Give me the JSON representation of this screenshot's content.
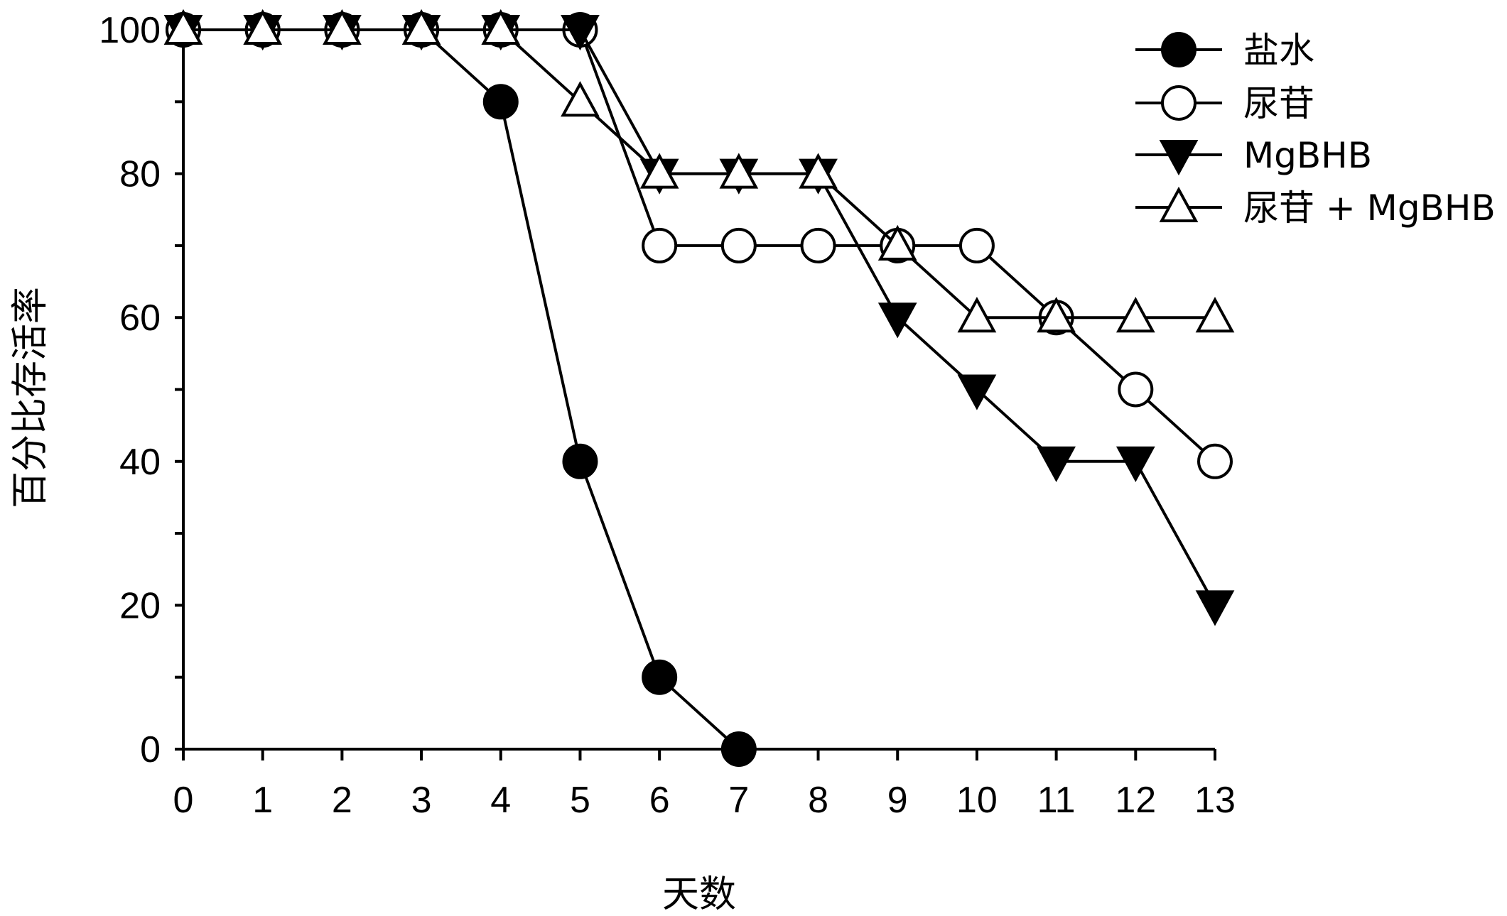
{
  "chart_data": {
    "type": "line",
    "title": "",
    "xlabel": "天数",
    "ylabel": "百分比存活率",
    "x": [
      0,
      1,
      2,
      3,
      4,
      5,
      6,
      7,
      8,
      9,
      10,
      11,
      12,
      13
    ],
    "xlim": [
      0,
      13
    ],
    "ylim": [
      0,
      100
    ],
    "yticks": [
      0,
      20,
      40,
      60,
      80,
      100
    ],
    "xtick_labels": [
      "0",
      "1",
      "2",
      "3",
      "4",
      "5",
      "6",
      "7",
      "8",
      "9",
      "10",
      "11",
      "12",
      "13"
    ],
    "ytick_labels": [
      "0",
      "20",
      "40",
      "60",
      "80",
      "100"
    ],
    "grid": false,
    "legend_position": "top-right",
    "series": [
      {
        "name": "盐水",
        "marker": "filled-circle",
        "x": [
          0,
          1,
          2,
          3,
          4,
          5,
          6,
          7
        ],
        "values": [
          100,
          100,
          100,
          100,
          90,
          40,
          10,
          0
        ]
      },
      {
        "name": "尿苷",
        "marker": "open-circle",
        "x": [
          0,
          1,
          2,
          3,
          4,
          5,
          6,
          7,
          8,
          9,
          10,
          11,
          12,
          13
        ],
        "values": [
          100,
          100,
          100,
          100,
          100,
          100,
          70,
          70,
          70,
          70,
          70,
          60,
          50,
          40
        ]
      },
      {
        "name": "MgBHB",
        "marker": "filled-triangle-down",
        "x": [
          0,
          1,
          2,
          3,
          4,
          5,
          6,
          7,
          8,
          9,
          10,
          11,
          12,
          13
        ],
        "values": [
          100,
          100,
          100,
          100,
          100,
          100,
          80,
          80,
          80,
          60,
          50,
          40,
          40,
          20
        ]
      },
      {
        "name": "尿苷 + MgBHB",
        "marker": "open-triangle-up",
        "x": [
          0,
          1,
          2,
          3,
          4,
          5,
          6,
          7,
          8,
          9,
          10,
          11,
          12,
          13
        ],
        "values": [
          100,
          100,
          100,
          100,
          100,
          90,
          80,
          80,
          80,
          70,
          60,
          60,
          60,
          60
        ]
      }
    ]
  }
}
